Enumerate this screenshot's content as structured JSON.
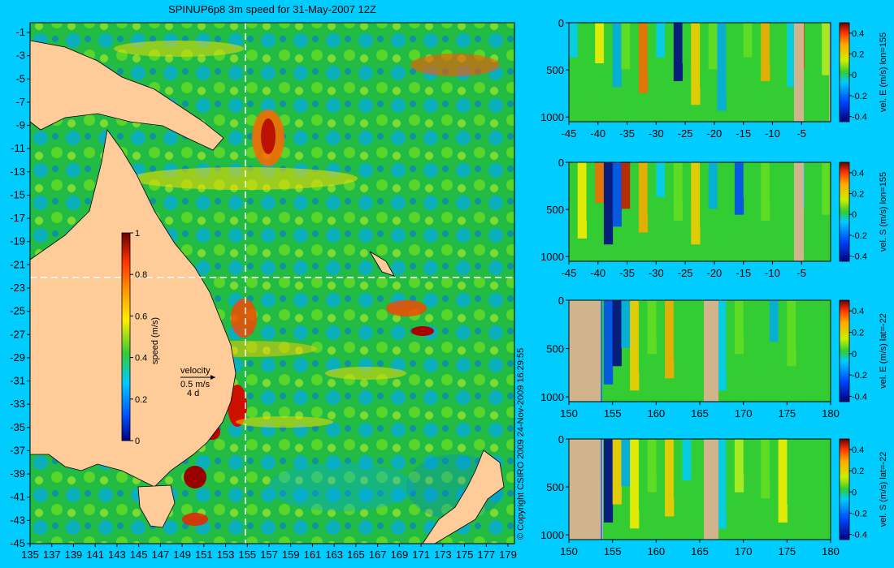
{
  "title": "SPINUP6p8 3m speed for 31-May-2007 12Z",
  "copyright": "© Copyright CSIRO 2009   24-Nov-2009 16:29:55",
  "colors": {
    "background": "#00ccff",
    "land": "#ffcc99",
    "section_land": "#d2b48c",
    "ocean_low": "#00aaff",
    "ocean_mid": "#33cc33",
    "ocean_high": "#ffcc00",
    "ocean_max": "#cc0000"
  },
  "map": {
    "x_ticks": [
      "135",
      "137",
      "139",
      "141",
      "143",
      "145",
      "147",
      "149",
      "151",
      "153",
      "155",
      "157",
      "159",
      "161",
      "163",
      "165",
      "167",
      "169",
      "171",
      "173",
      "175",
      "177",
      "179"
    ],
    "y_ticks": [
      "-1",
      "-3",
      "-5",
      "-7",
      "-9",
      "-11",
      "-13",
      "-15",
      "-17",
      "-19",
      "-21",
      "-23",
      "-25",
      "-27",
      "-29",
      "-31",
      "-33",
      "-35",
      "-37",
      "-39",
      "-41",
      "-43",
      "-45"
    ],
    "colorbar": {
      "label": "speed (m/s)",
      "ticks": [
        "1",
        "0.8",
        "0.6",
        "0.4",
        "0.2",
        "0"
      ]
    },
    "velocity_legend": {
      "label": "velocity",
      "scale": "0.5 m/s",
      "period": "4 d"
    },
    "section_lon": 155,
    "section_lat": -22
  },
  "chart_data": [
    {
      "type": "heatmap",
      "field": "vel. E",
      "colorbar_label": "vel. E (m/s) lon=155",
      "x_ticks": [
        "-45",
        "-40",
        "-35",
        "-30",
        "-25",
        "-20",
        "-15",
        "-10",
        "-5"
      ],
      "y_ticks": [
        "0",
        "500",
        "1000"
      ],
      "colorbar_ticks": [
        "0.4",
        "0.2",
        "0",
        "-0.2",
        "-0.4"
      ],
      "xlim": [
        -45,
        0
      ],
      "ylim": [
        0,
        1050
      ]
    },
    {
      "type": "heatmap",
      "field": "vel. S",
      "colorbar_label": "vel. S (m/s) lon=155",
      "x_ticks": [
        "-45",
        "-40",
        "-35",
        "-30",
        "-25",
        "-20",
        "-15",
        "-10",
        "-5"
      ],
      "y_ticks": [
        "0",
        "500",
        "1000"
      ],
      "colorbar_ticks": [
        "0.4",
        "0.2",
        "0",
        "-0.2",
        "-0.4"
      ],
      "xlim": [
        -45,
        0
      ],
      "ylim": [
        0,
        1050
      ]
    },
    {
      "type": "heatmap",
      "field": "vel. E",
      "colorbar_label": "vel. E (m/s) lat=-22",
      "x_ticks": [
        "150",
        "155",
        "160",
        "165",
        "170",
        "175",
        "180"
      ],
      "y_ticks": [
        "0",
        "500",
        "1000"
      ],
      "colorbar_ticks": [
        "0.4",
        "0.2",
        "0",
        "-0.2",
        "-0.4"
      ],
      "xlim": [
        150,
        180
      ],
      "ylim": [
        0,
        1050
      ]
    },
    {
      "type": "heatmap",
      "field": "vel. S",
      "colorbar_label": "vel. S (m/s) lat=-22",
      "x_ticks": [
        "150",
        "155",
        "160",
        "165",
        "170",
        "175",
        "180"
      ],
      "y_ticks": [
        "0",
        "500",
        "1000"
      ],
      "colorbar_ticks": [
        "0.4",
        "0.2",
        "0",
        "-0.2",
        "-0.4"
      ],
      "xlim": [
        150,
        180
      ],
      "ylim": [
        0,
        1050
      ]
    }
  ]
}
